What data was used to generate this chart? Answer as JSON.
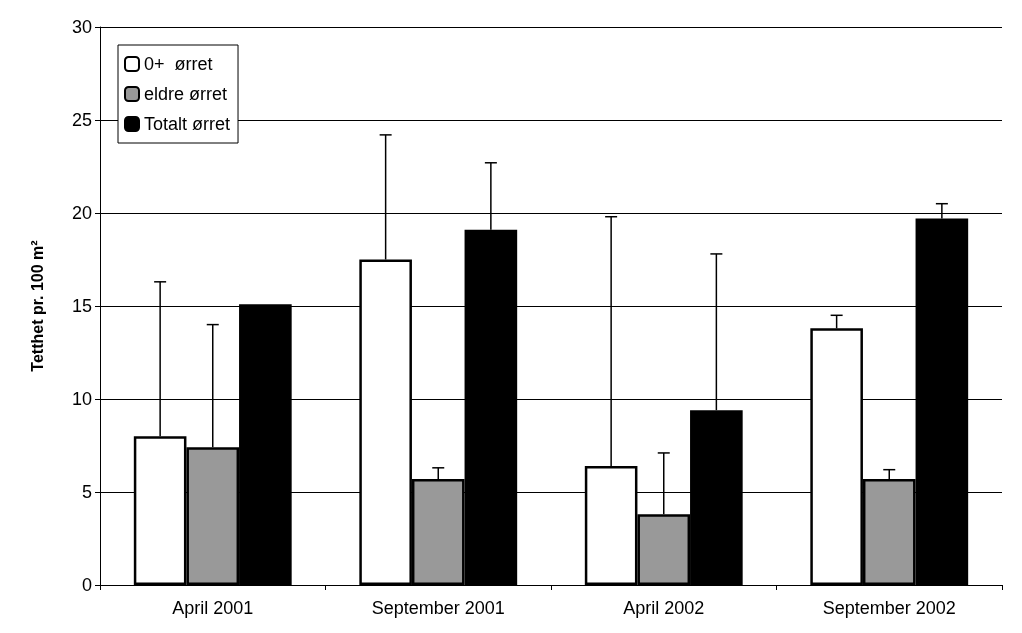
{
  "chart_data": {
    "type": "bar",
    "ylabel": "Tetthet pr. 100 m²",
    "categories": [
      "April 2001",
      "September 2001",
      "April 2002",
      "September 2002"
    ],
    "series": [
      {
        "name": "0+  ørret",
        "color": "#ffffff",
        "values": [
          8.0,
          17.5,
          6.4,
          13.8
        ],
        "errors": [
          [
            8.0,
            16.3
          ],
          [
            17.5,
            24.2
          ],
          [
            6.4,
            19.8
          ],
          [
            13.8,
            14.5
          ]
        ]
      },
      {
        "name": "eldre ørret",
        "color": "#999999",
        "values": [
          7.4,
          5.7,
          3.8,
          5.7
        ],
        "errors": [
          [
            7.4,
            14.0
          ],
          [
            5.7,
            6.3
          ],
          [
            3.8,
            7.1
          ],
          [
            5.7,
            6.2
          ]
        ]
      },
      {
        "name": "Totalt ørret",
        "color": "#000000",
        "values": [
          15.1,
          19.1,
          9.4,
          19.7
        ],
        "errors": [
          null,
          [
            19.1,
            22.7
          ],
          [
            9.4,
            17.8
          ],
          [
            19.7,
            20.5
          ]
        ]
      }
    ],
    "ylim": [
      0,
      30
    ],
    "yticks": [
      0,
      5,
      10,
      15,
      20,
      25,
      30
    ],
    "grid": "y",
    "legend": "top left"
  }
}
